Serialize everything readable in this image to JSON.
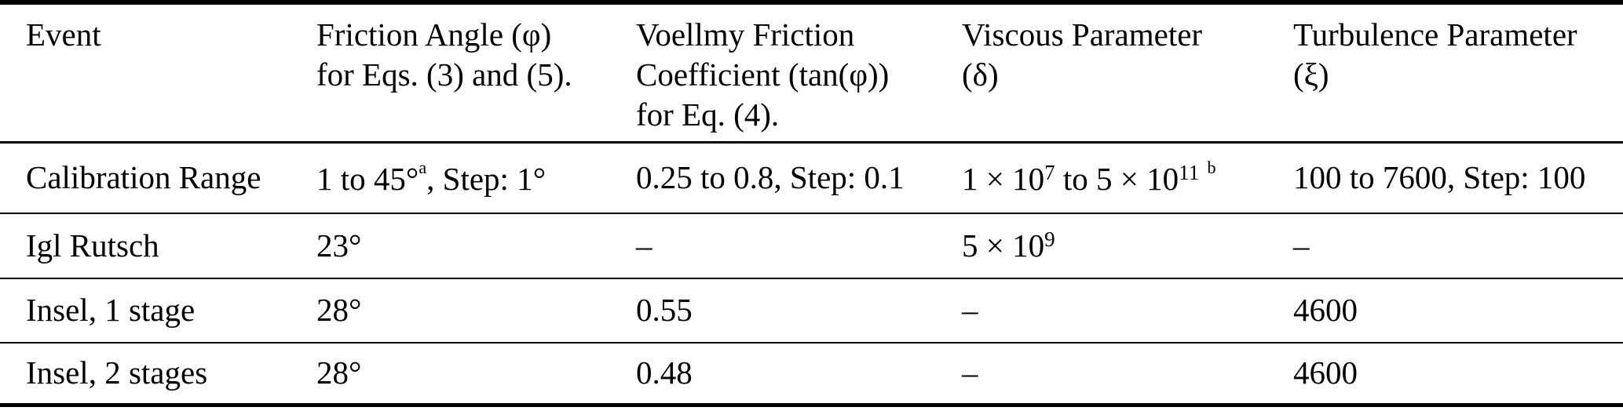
{
  "page": {
    "background_color": "#ffffff",
    "text_color": "#000000",
    "rule_color": "#000000"
  },
  "table": {
    "header": {
      "event": "Event",
      "friction_angle": "Friction Angle (φ)\nfor Eqs. (3) and (5).",
      "voellmy_coefficient": "Voellmy Friction\nCoefficient (tan(φ))\nfor Eq. (4).",
      "viscous_parameter": "Viscous Parameter\n(δ)",
      "turbulence_parameter": "Turbulence Parameter\n(ξ)"
    },
    "rows": [
      {
        "event": "Calibration Range",
        "friction_angle": [
          {
            "t": "1 to 45"
          },
          {
            "t": "°"
          },
          {
            "t": "a",
            "c": "fn"
          },
          {
            "t": ", Step: 1"
          },
          {
            "t": "°"
          }
        ],
        "voellmy_coefficient": [
          {
            "t": "0.25 to 0.8, Step: 0.1"
          }
        ],
        "viscous_parameter": [
          {
            "t": "1 × 10"
          },
          {
            "t": "7",
            "c": "sup"
          },
          {
            "t": " to 5 × 10"
          },
          {
            "t": "11",
            "c": "sup"
          },
          {
            "t": " "
          },
          {
            "t": "b",
            "c": "fn"
          }
        ],
        "turbulence_parameter": [
          {
            "t": "100 to 7600, Step: 100"
          }
        ]
      },
      {
        "event": "Igl Rutsch",
        "friction_angle": [
          {
            "t": "23"
          },
          {
            "t": "°"
          }
        ],
        "voellmy_coefficient": [
          {
            "t": "–"
          }
        ],
        "viscous_parameter": [
          {
            "t": "5 × 10"
          },
          {
            "t": "9",
            "c": "sup"
          }
        ],
        "turbulence_parameter": [
          {
            "t": "–"
          }
        ]
      },
      {
        "event": "Insel, 1 stage",
        "friction_angle": [
          {
            "t": "28"
          },
          {
            "t": "°"
          }
        ],
        "voellmy_coefficient": [
          {
            "t": "0.55"
          }
        ],
        "viscous_parameter": [
          {
            "t": "–"
          }
        ],
        "turbulence_parameter": [
          {
            "t": "4600"
          }
        ]
      },
      {
        "event": "Insel, 2 stages",
        "friction_angle": [
          {
            "t": "28"
          },
          {
            "t": "°"
          }
        ],
        "voellmy_coefficient": [
          {
            "t": "0.48"
          }
        ],
        "viscous_parameter": [
          {
            "t": "–"
          }
        ],
        "turbulence_parameter": [
          {
            "t": "4600"
          }
        ]
      }
    ]
  }
}
